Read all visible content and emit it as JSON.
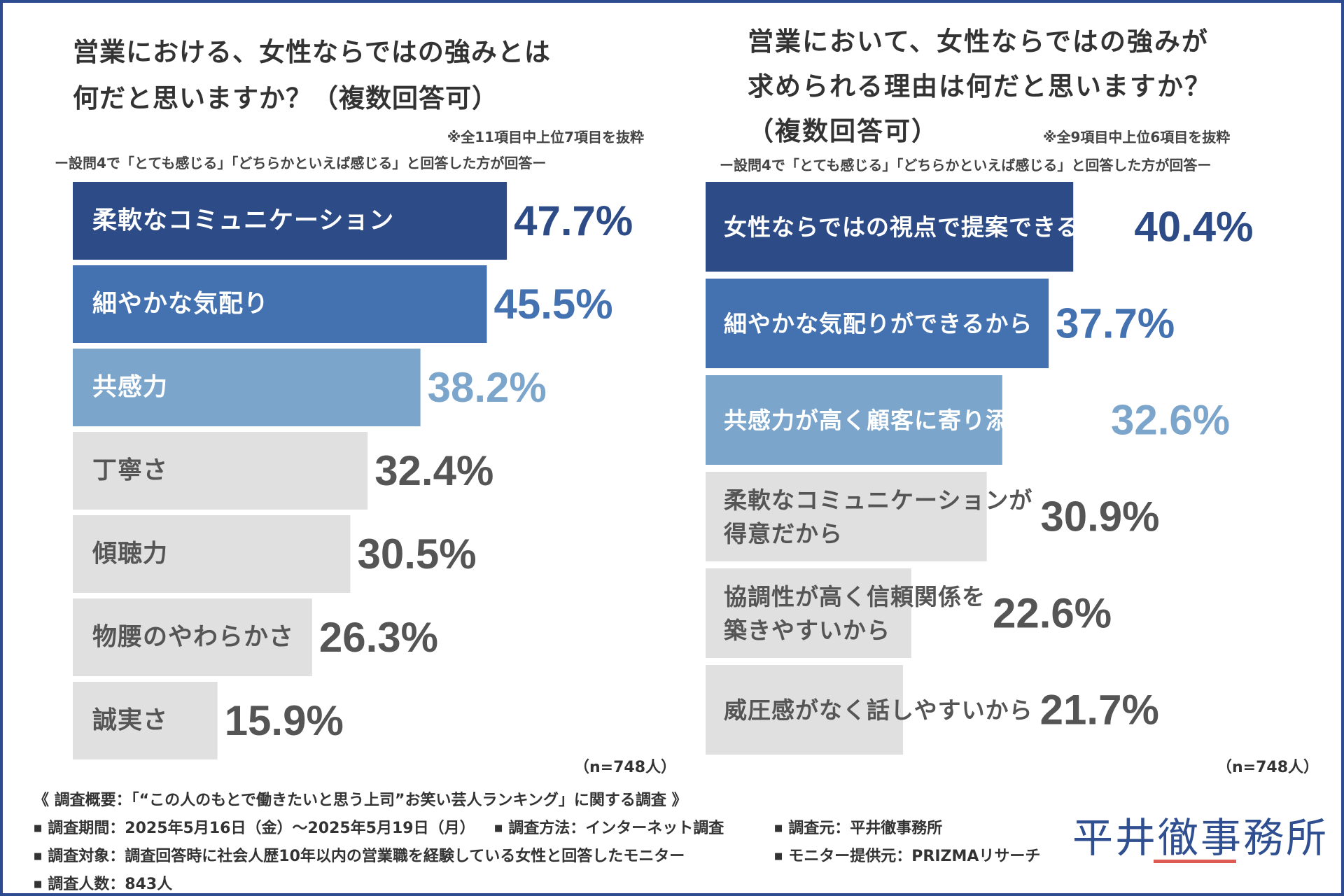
{
  "chart_data": [
    {
      "type": "bar",
      "orientation": "horizontal",
      "title_lines": [
        "営業における、女性ならではの強みとは",
        "何だと思いますか？（複数回答可）"
      ],
      "note": "※全11項目中上位7項目を抜粋",
      "condition": "ー設問4で「とても感じる」「どちらかといえば感じる」と回答した方が回答ー",
      "unit": "%",
      "categories": [
        [
          "柔軟なコミュニケーション"
        ],
        [
          "細やかな気配り"
        ],
        [
          "共感力"
        ],
        [
          "丁寧さ"
        ],
        [
          "傾聴力"
        ],
        [
          "物腰のやわらかさ"
        ],
        [
          "誠実さ"
        ]
      ],
      "values": [
        47.7,
        45.5,
        38.2,
        32.4,
        30.5,
        26.3,
        15.9
      ],
      "value_labels": [
        "47.7%",
        "45.5%",
        "38.2%",
        "32.4%",
        "30.5%",
        "26.3%",
        "15.9%"
      ],
      "xlim": [
        0,
        50
      ],
      "n_label": "（n=748人）"
    },
    {
      "type": "bar",
      "orientation": "horizontal",
      "title_lines": [
        "営業において、女性ならではの強みが",
        "求められる理由は何だと思いますか？",
        "（複数回答可）"
      ],
      "note": "※全9項目中上位6項目を抜粋",
      "condition": "ー設問4で「とても感じる」「どちらかといえば感じる」と回答した方が回答ー",
      "unit": "%",
      "categories": [
        [
          "女性ならではの視点で提案できるから"
        ],
        [
          "細やかな気配りができるから"
        ],
        [
          "共感力が高く顧客に寄り添えるから"
        ],
        [
          "柔軟なコミュニケーションが",
          "得意だから"
        ],
        [
          "協調性が高く信頼関係を",
          "築きやすいから"
        ],
        [
          "威圧感がなく話しやすいから"
        ]
      ],
      "values": [
        40.4,
        37.7,
        32.6,
        30.9,
        22.6,
        21.7
      ],
      "value_labels": [
        "40.4%",
        "37.7%",
        "32.6%",
        "30.9%",
        "22.6%",
        "21.7%"
      ],
      "xlim": [
        0,
        50
      ],
      "n_label": "（n=748人）"
    }
  ],
  "colors": {
    "rank1": "#2d4b86",
    "rank2": "#4472b0",
    "rank3": "#7ca5cc",
    "rest": "#e0e0e0",
    "label_dark": "#ffffff",
    "label_light": "#555555",
    "value_rest": "#555555"
  },
  "footer": {
    "title": "《 調査概要：「“この人のもとで働きたいと思う上司”お笑い芸人ランキング」に関する調査 》",
    "period": "調査期間：2025年5月16日（金）～2025年5月19日（月）",
    "method": "調査方法：インターネット調査",
    "organizer": "調査元：平井徹事務所",
    "target": "調査対象：調査回答時に社会人歴10年以内の営業職を経験している女性と回答したモニター",
    "provider": "モニター提供元：PRIZMAリサーチ",
    "count": "調査人数：843人"
  },
  "logo": "平井徹事務所"
}
